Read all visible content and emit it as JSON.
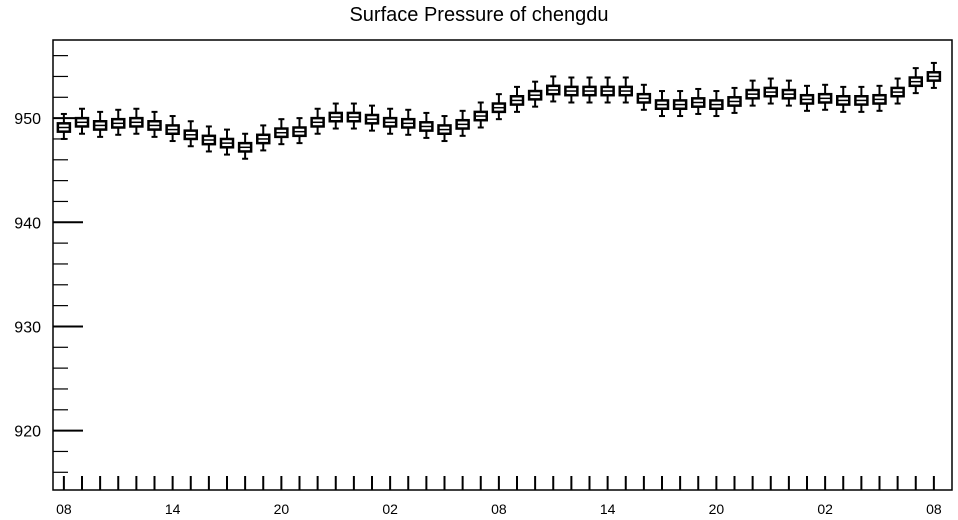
{
  "chart_data": {
    "type": "boxplot",
    "title": "Surface Pressure of chengdu",
    "xlabel": "",
    "ylabel": "",
    "ylim": [
      914.3,
      957.5
    ],
    "y_major_ticks": [
      920,
      930,
      940,
      950
    ],
    "y_tick_labels": [
      "920",
      "930",
      "940",
      "950"
    ],
    "x_tick_labels": [
      "08",
      "14",
      "20",
      "02",
      "08",
      "14",
      "20",
      "02",
      "08"
    ],
    "x_tick_label_hours": [
      0,
      6,
      12,
      18,
      24,
      30,
      36,
      42,
      48
    ],
    "x_range_hours": [
      -0.6,
      49.0
    ],
    "grid": false,
    "legend": "none",
    "series": [
      {
        "x": [
          0,
          1,
          2,
          3,
          4,
          5,
          6,
          7,
          8,
          9,
          10,
          11,
          12,
          13,
          14,
          15,
          16,
          17,
          18,
          19,
          20,
          21,
          22,
          23,
          24,
          25,
          26,
          27,
          28,
          29,
          30,
          31,
          32,
          33,
          34,
          35,
          36,
          37,
          38,
          39,
          40,
          41,
          42,
          43,
          44,
          45,
          46,
          47,
          48
        ],
        "values": [
          949.1,
          949.6,
          949.3,
          949.5,
          949.6,
          949.3,
          948.9,
          948.4,
          947.9,
          947.6,
          947.2,
          948.0,
          948.6,
          948.7,
          949.6,
          950.1,
          950.1,
          949.9,
          949.6,
          949.5,
          949.2,
          948.9,
          949.4,
          950.2,
          951.0,
          951.7,
          952.2,
          952.7,
          952.6,
          952.6,
          952.6,
          952.6,
          951.9,
          951.3,
          951.3,
          951.5,
          951.3,
          951.6,
          952.3,
          952.5,
          952.3,
          951.8,
          951.9,
          951.7,
          951.7,
          951.8,
          952.5,
          953.5,
          954.0
        ],
        "box_half_height": 0.4,
        "whisker_high_offset": 1.3,
        "whisker_low_offset": 1.1
      }
    ]
  }
}
